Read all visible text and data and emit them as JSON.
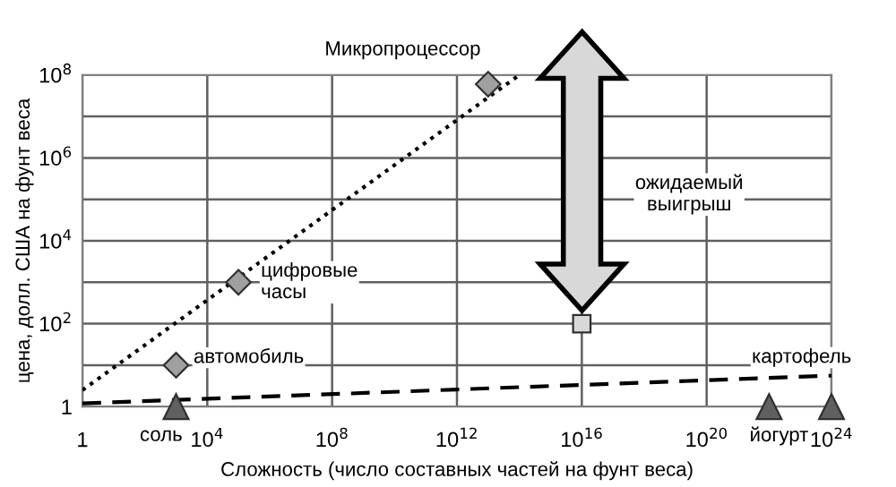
{
  "chart_data": {
    "type": "scatter",
    "xlabel": "Сложность (число составных частей на фунт веса)",
    "ylabel": "цена, долл. США на фунт веса",
    "log": "xy",
    "grid": true,
    "xlim": [
      1,
      1e+24
    ],
    "ylim": [
      1,
      100000000.0
    ],
    "xticks": [
      1,
      {
        "value": 10000.0,
        "label": "10$^{4}$"
      },
      {
        "value": 100000000.0,
        "label": "10$^{8}$"
      },
      {
        "value": 1000000000000.0,
        "label": "10$^{12}$"
      },
      {
        "value": 1e+16,
        "label": "10$^{16}$"
      },
      {
        "value": 1e+20,
        "label": "10$^{20}$"
      },
      {
        "value": 1e+24,
        "label": "10$^{24}$"
      }
    ],
    "yticks": [
      1,
      {
        "value": 10,
        "label": null
      },
      {
        "value": 100,
        "label": "10$^{2}$"
      },
      {
        "value": 1000,
        "label": null
      },
      {
        "value": 10000.0,
        "label": "10$^{4}$"
      },
      {
        "value": 100000.0,
        "label": null
      },
      {
        "value": 1000000.0,
        "label": "10$^{6}$"
      },
      {
        "value": 10000000.0,
        "label": null
      },
      {
        "value": 100000000.0,
        "label": "10$^{8}$"
      }
    ],
    "series": [
      {
        "type": "line",
        "color": "#000000",
        "line_style": "dotted",
        "marker": "none",
        "x": [
          1,
          100000000000000.0
        ],
        "values": [
          2.5,
          100000000.0
        ]
      },
      {
        "type": "line",
        "color": "#000000",
        "line_style": "dashed",
        "marker": "none",
        "x": [
          1,
          1e+24
        ],
        "values": [
          1.2,
          5.6
        ]
      },
      {
        "color": "#a0a0a0",
        "marker": "diamond",
        "x": [
          1000.0,
          100000.0,
          10000000000000.0
        ],
        "values": [
          10,
          1000,
          60000000.0
        ]
      },
      {
        "color": "#d8d8d8",
        "marker": "square",
        "x": [
          1e+16
        ],
        "values": [
          100
        ]
      },
      {
        "color": "#606060",
        "marker": "triangle",
        "x": [
          1000.0,
          1e+22,
          1e+24
        ],
        "values": [
          1,
          1,
          1
        ]
      }
    ],
    "annotations": [
      {
        "text": "автомобиль",
        "x": 1000.0,
        "y": 10
      },
      {
        "text": "цифровые\nчасы",
        "x": 100000.0,
        "y": 1000
      },
      {
        "text": "Микропроцессор",
        "x": 10000000000000.0,
        "y": 60000000.0
      },
      {
        "text": "соль",
        "x": 1000.0,
        "y": 1
      },
      {
        "text": "йогурт",
        "x": 1e+22,
        "y": 1
      },
      {
        "text": "картофель",
        "x": 1e+24,
        "y": 1
      },
      "ожидаемый\nвыигрыш"
    ]
  }
}
